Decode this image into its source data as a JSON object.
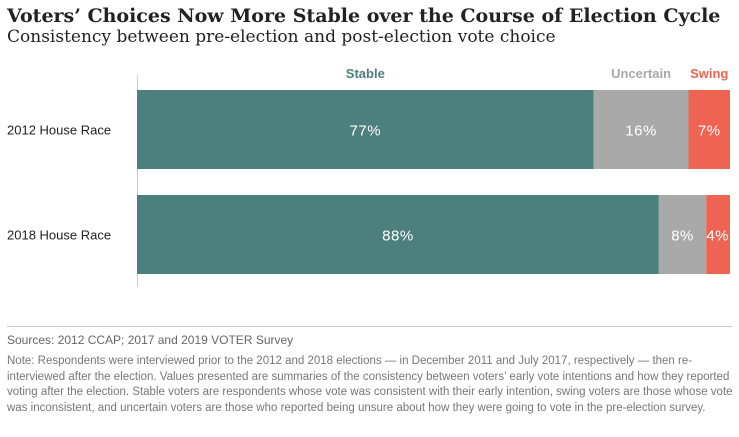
{
  "title": "Voters’ Choices Now More Stable over the Course of Election Cycle",
  "subtitle": "Consistency between pre-election and post-election vote choice",
  "chart_data": {
    "type": "bar",
    "orientation": "horizontal",
    "stacked": true,
    "categories": [
      "2012 House Race",
      "2018 House Race"
    ],
    "series": [
      {
        "name": "Stable",
        "values": [
          77,
          88
        ],
        "labels": [
          "77%",
          "88%"
        ],
        "color": "#4c807d"
      },
      {
        "name": "Uncertain",
        "values": [
          16,
          8
        ],
        "labels": [
          "16%",
          "8%"
        ],
        "color": "#a9a9a9"
      },
      {
        "name": "Swing",
        "values": [
          7,
          4
        ],
        "labels": [
          "7%",
          "4%"
        ],
        "color": "#ee6352"
      }
    ],
    "xlim": [
      0,
      100
    ],
    "legend_position": "top",
    "grid": false
  },
  "sources": "Sources: 2012 CCAP; 2017 and 2019 VOTER Survey",
  "note": "Note: Respondents were interviewed prior to the 2012 and 2018 elections — in December 2011 and July 2017, respectively — then re-interviewed after the election. Values presented are summaries of the consistency between voters’ early vote intentions and how they reported voting after the election. Stable voters are respondents whose vote was consistent with their early intention, swing voters are those whose vote was inconsistent, and uncertain voters are those who reported being unsure about how they were going to vote in the pre-election survey."
}
